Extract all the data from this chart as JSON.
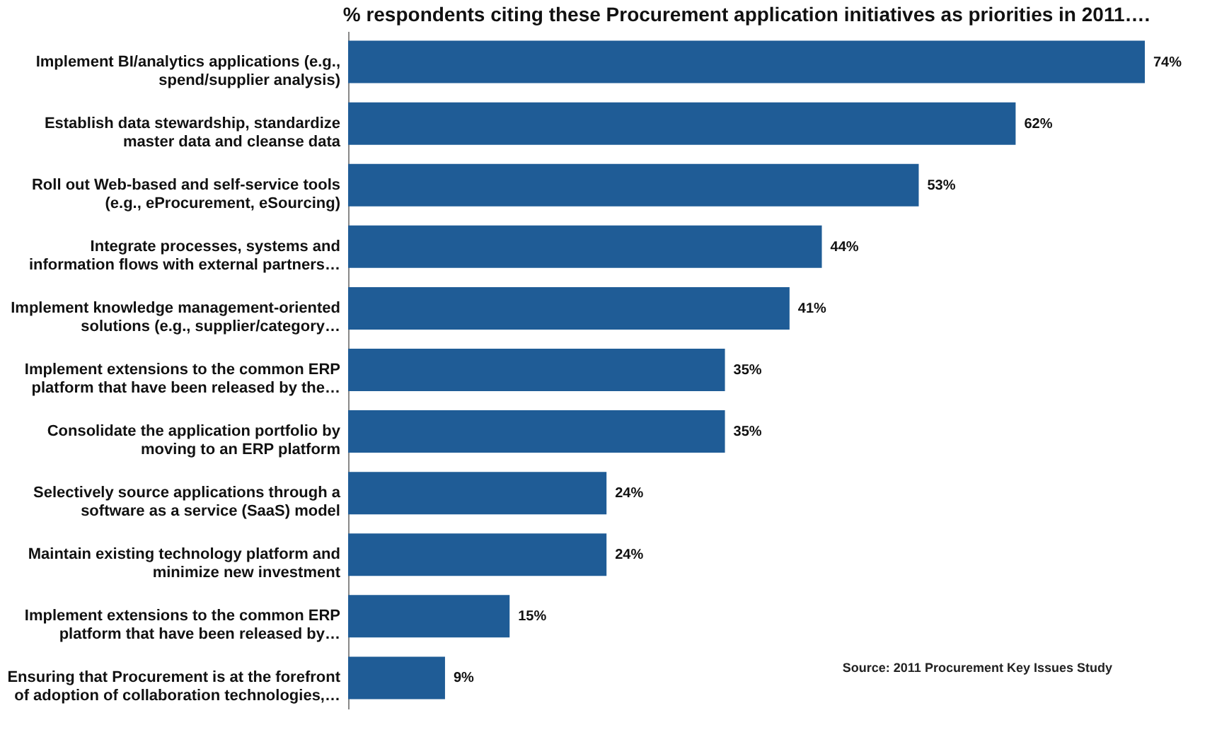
{
  "chart_data": {
    "type": "bar",
    "orientation": "horizontal",
    "title": "% respondents citing these Procurement application initiatives as priorities in 2011….",
    "categories": [
      "Implement BI/analytics applications (e.g.,\nspend/supplier analysis)",
      "Establish data stewardship, standardize\nmaster data and cleanse data",
      "Roll out Web-based and self-service tools\n(e.g., eProcurement, eSourcing)",
      "Integrate processes, systems and\ninformation flows with external partners…",
      "Implement knowledge management-oriented\nsolutions (e.g., supplier/category…",
      "Implement extensions to the common ERP\nplatform that have been released by the…",
      "Consolidate the application portfolio by\nmoving to an ERP platform",
      "Selectively source applications through a\nsoftware as a service (SaaS) model",
      "Maintain existing technology platform and\nminimize new investment",
      "Implement extensions to the common ERP\nplatform that have been released by…",
      "Ensuring that Procurement is at the forefront\nof adoption of collaboration technologies,…"
    ],
    "values": [
      74,
      62,
      53,
      44,
      41,
      35,
      35,
      24,
      24,
      15,
      9
    ],
    "value_labels": [
      "74%",
      "62%",
      "53%",
      "44%",
      "41%",
      "35%",
      "35%",
      "24%",
      "24%",
      "15%",
      "9%"
    ],
    "color": "#1f5c96",
    "tick_labels": "y",
    "annotations": [
      "Source: 2011 Procurement Key Issues Study"
    ]
  }
}
